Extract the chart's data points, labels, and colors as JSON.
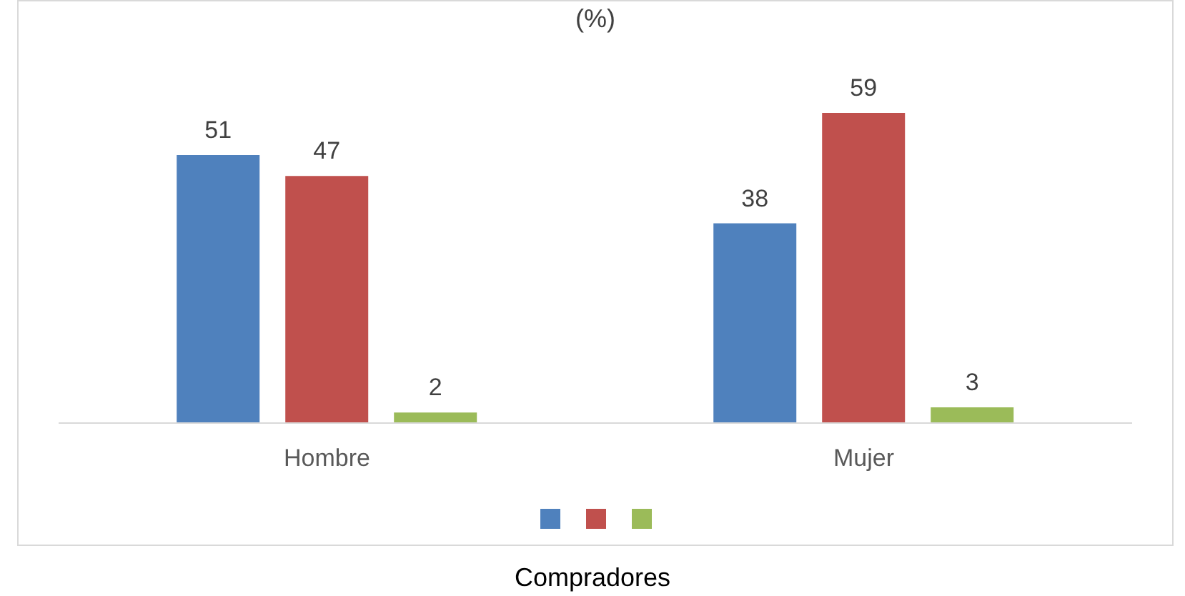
{
  "chart_data": {
    "type": "bar",
    "title": "(%)",
    "categories": [
      "Hombre",
      "Mujer"
    ],
    "series": [
      {
        "color": "#4f81bd",
        "values": [
          51,
          38
        ]
      },
      {
        "color": "#c0504d",
        "values": [
          47,
          59
        ]
      },
      {
        "color": "#9bbb59",
        "values": [
          2,
          3
        ]
      }
    ],
    "data_labels": true,
    "grid": false,
    "annotations": [
      "Compradores"
    ]
  }
}
